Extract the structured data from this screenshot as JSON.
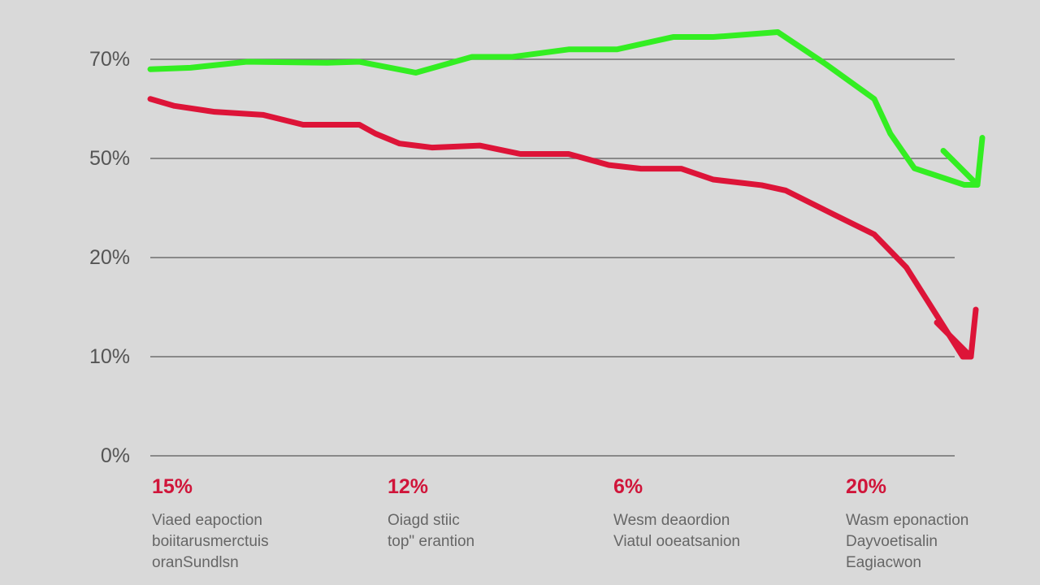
{
  "colors": {
    "background": "#d9d9d9",
    "series_green": "#33ee22",
    "series_red": "#dd1438",
    "callout_value": "#d0153a",
    "grid": "#6f6f6f",
    "text": "#555555"
  },
  "chart_data": {
    "type": "line",
    "title": "",
    "xlabel": "",
    "ylabel": "",
    "grid": true,
    "y_ticks": [
      "70%",
      "50%",
      "20%",
      "10%",
      "0%"
    ],
    "series": [
      {
        "color": "#33ee22",
        "arrow_end": true,
        "x": [
          0,
          5,
          12,
          22,
          26,
          33,
          40,
          45,
          52,
          58,
          65,
          70,
          78,
          84,
          90,
          92,
          95,
          99,
          100
        ],
        "y": [
          68,
          68.3,
          69.5,
          69.3,
          69.5,
          67.3,
          70.5,
          70.5,
          72,
          72,
          74.5,
          74.5,
          75.5,
          69,
          62,
          55,
          47,
          42,
          42
        ]
      },
      {
        "color": "#dd1438",
        "arrow_end": true,
        "x": [
          0,
          3,
          8,
          14,
          19,
          26,
          28,
          31,
          35,
          41,
          46,
          52,
          57,
          61,
          66,
          70,
          76,
          79,
          85,
          90,
          94,
          98,
          100
        ],
        "y": [
          62,
          60.6,
          59.4,
          58.8,
          56.8,
          56.8,
          55,
          53,
          52.2,
          52.6,
          50.9,
          50.9,
          48,
          46.9,
          46.9,
          43.6,
          41.9,
          40.3,
          33,
          27,
          19,
          10,
          10
        ]
      }
    ],
    "callouts": [
      {
        "value": "15%",
        "lines": [
          "Viaed eapoction",
          "boiitarusmerctuis",
          "oranSundlsn"
        ]
      },
      {
        "value": "12%",
        "lines": [
          "Oiagd stiic",
          "top\" erantion"
        ]
      },
      {
        "value": "6%",
        "lines": [
          "Wesm deaordion",
          "Viatul ooeatsanion"
        ]
      },
      {
        "value": "20%",
        "lines": [
          "Wasm eponaction",
          "Dayvoetisalin",
          "Eagiacwon"
        ]
      }
    ]
  }
}
